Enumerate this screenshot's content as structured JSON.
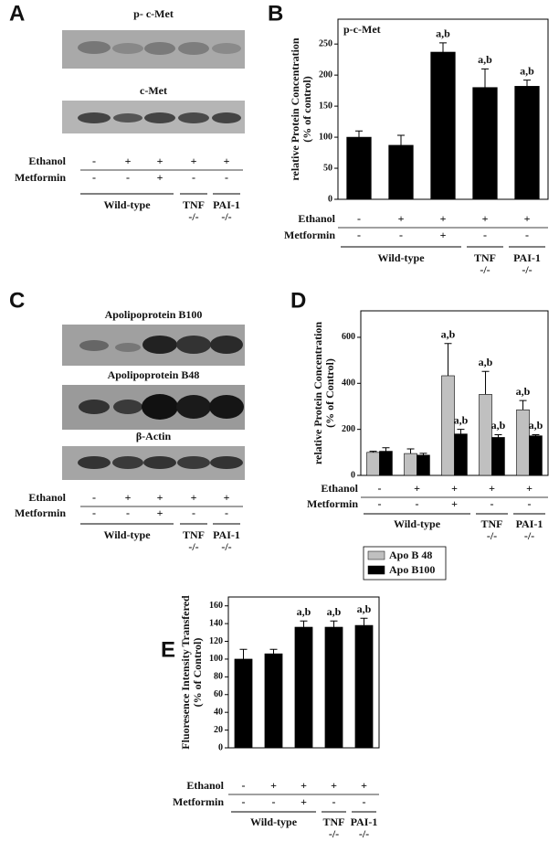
{
  "blots": [
    {
      "panel": "A",
      "labels": [
        "p- c-Met",
        "c-Met"
      ],
      "conditions": [
        {
          "name": "Ethanol",
          "values": [
            "-",
            "+",
            "+",
            "+",
            "+"
          ]
        },
        {
          "name": "Metformin",
          "values": [
            "-",
            "-",
            "+",
            "-",
            "-"
          ]
        }
      ],
      "groups": [
        {
          "label": "Wild-type"
        },
        {
          "label": "TNF",
          "sublabel": "-/-"
        },
        {
          "label": "PAI-1",
          "sublabel": "-/-"
        }
      ]
    },
    {
      "panel": "C",
      "labels": [
        "Apolipoprotein B100",
        "Apolipoprotein B48",
        "β-Actin"
      ],
      "conditions": [
        {
          "name": "Ethanol",
          "values": [
            "-",
            "+",
            "+",
            "+",
            "+"
          ]
        },
        {
          "name": "Metformin",
          "values": [
            "-",
            "-",
            "+",
            "-",
            "-"
          ]
        }
      ],
      "groups": [
        {
          "label": "Wild-type"
        },
        {
          "label": "TNF",
          "sublabel": "-/-"
        },
        {
          "label": "PAI-1",
          "sublabel": "-/-"
        }
      ]
    }
  ],
  "chart_data": [
    {
      "type": "bar",
      "panel": "B",
      "title": "p-c-Met",
      "y_label": [
        "relative Protein Concentration",
        "(% of control)"
      ],
      "ylim": [
        0,
        290
      ],
      "yticks": [
        0,
        50,
        100,
        150,
        200,
        250
      ],
      "series": [
        {
          "name": "p-c-Met",
          "color": "#000000",
          "values": [
            100,
            87,
            237,
            180,
            182
          ],
          "errors": [
            10,
            16,
            15,
            30,
            10
          ],
          "annotations": [
            null,
            null,
            "a,b",
            "a,b",
            "a,b"
          ]
        }
      ],
      "conditions": [
        {
          "name": "Ethanol",
          "values": [
            "-",
            "+",
            "+",
            "+",
            "+"
          ]
        },
        {
          "name": "Metformin",
          "values": [
            "-",
            "-",
            "+",
            "-",
            "-"
          ]
        }
      ],
      "groups": [
        {
          "label": "Wild-type"
        },
        {
          "label": "TNF",
          "sublabel": "-/-"
        },
        {
          "label": "PAI-1",
          "sublabel": "-/-"
        }
      ]
    },
    {
      "type": "bar",
      "panel": "D",
      "y_label": [
        "relative Protein Concentration",
        "(% of Control)"
      ],
      "ylim": [
        0,
        715
      ],
      "yticks": [
        0,
        200,
        400,
        600
      ],
      "legend": "lower left",
      "series": [
        {
          "name": "Apo B 48",
          "color": "#c0c0c0",
          "values": [
            100,
            95,
            433,
            352,
            285
          ],
          "errors": [
            5,
            20,
            140,
            100,
            40
          ],
          "annotations": [
            null,
            null,
            "a,b",
            "a,b",
            "a,b"
          ]
        },
        {
          "name": "Apo B100",
          "color": "#000000",
          "values": [
            105,
            88,
            180,
            165,
            172
          ],
          "errors": [
            15,
            8,
            20,
            12,
            5
          ],
          "annotations": [
            null,
            null,
            "a,b",
            "a,b",
            "a,b"
          ]
        }
      ],
      "conditions": [
        {
          "name": "Ethanol",
          "values": [
            "-",
            "+",
            "+",
            "+",
            "+"
          ]
        },
        {
          "name": "Metformin",
          "values": [
            "-",
            "-",
            "+",
            "-",
            "-"
          ]
        }
      ],
      "groups": [
        {
          "label": "Wild-type"
        },
        {
          "label": "TNF",
          "sublabel": "-/-"
        },
        {
          "label": "PAI-1",
          "sublabel": "-/-"
        }
      ]
    },
    {
      "type": "bar",
      "panel": "E",
      "y_label": [
        "Fluoresence Intensity Transfered",
        "(% of Control)"
      ],
      "ylim": [
        0,
        170
      ],
      "yticks": [
        0,
        20,
        40,
        60,
        80,
        100,
        120,
        140,
        160
      ],
      "series": [
        {
          "name": "Fluorescence",
          "color": "#000000",
          "values": [
            100,
            106,
            136,
            136,
            138
          ],
          "errors": [
            11,
            5,
            7,
            7,
            8
          ],
          "annotations": [
            null,
            null,
            "a,b",
            "a,b",
            "a,b"
          ]
        }
      ],
      "conditions": [
        {
          "name": "Ethanol",
          "values": [
            "-",
            "+",
            "+",
            "+",
            "+"
          ]
        },
        {
          "name": "Metformin",
          "values": [
            "-",
            "-",
            "+",
            "-",
            "-"
          ]
        }
      ],
      "groups": [
        {
          "label": "Wild-type"
        },
        {
          "label": "TNF",
          "sublabel": "-/-"
        },
        {
          "label": "PAI-1",
          "sublabel": "-/-"
        }
      ]
    }
  ]
}
